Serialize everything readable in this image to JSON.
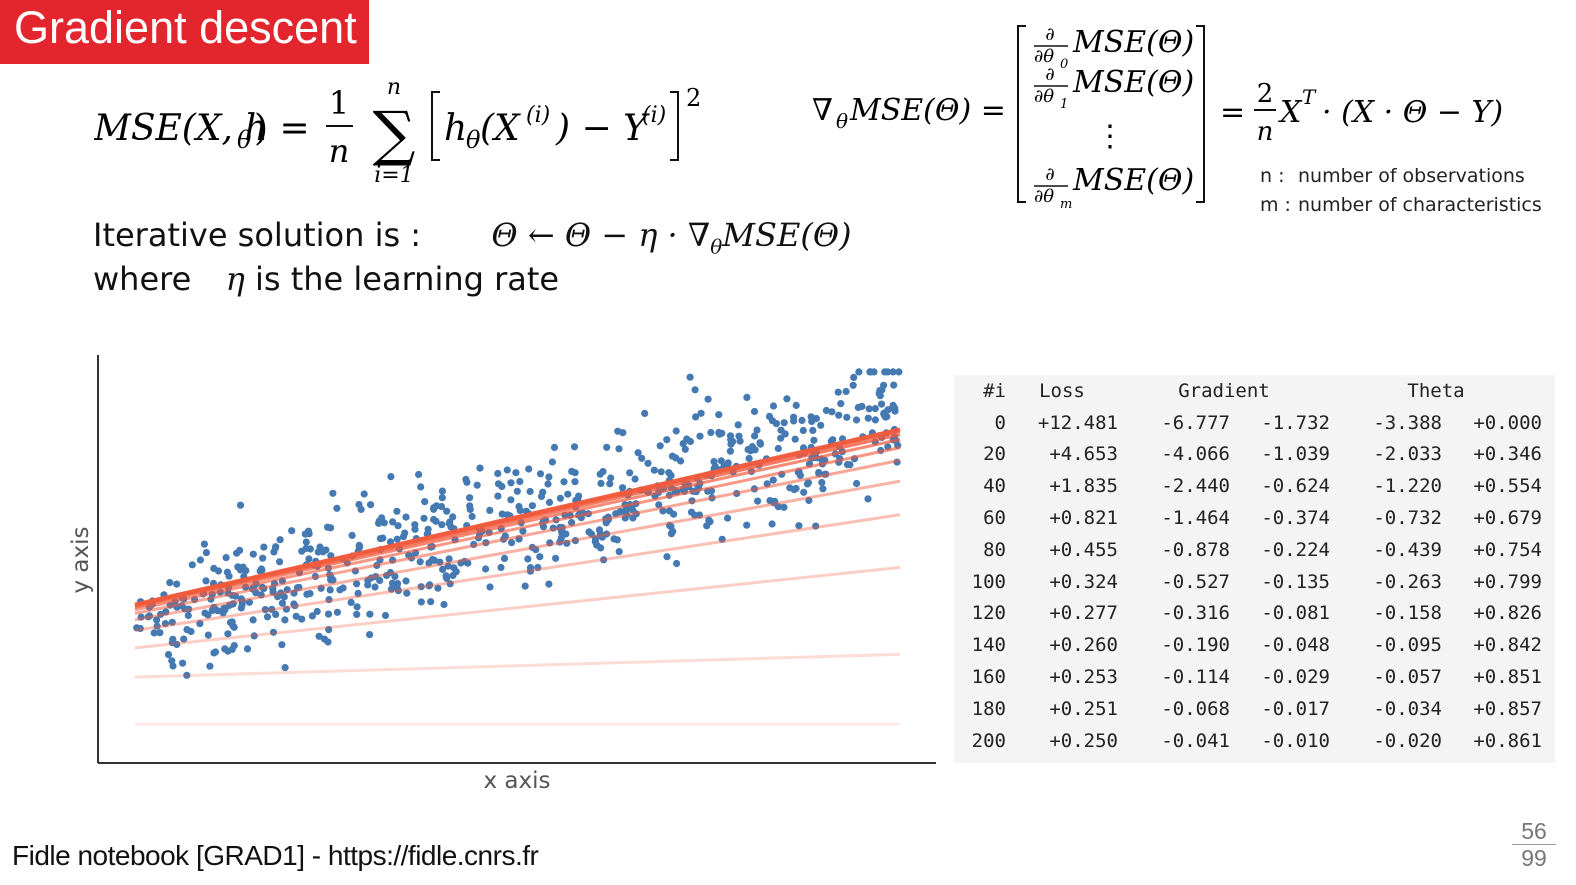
{
  "slide": {
    "title": "Gradient descent",
    "mse_formula": {
      "lhs": "MSE(X, h",
      "lhs_sub": "θ",
      "lhs_close": ") =",
      "frac_num": "1",
      "frac_den": "n",
      "sum_top": "n",
      "sum_bottom": "i=1",
      "sum_symbol": "∑",
      "body_h": "h",
      "body_h_sub": "θ",
      "body_x": "(X",
      "body_x_sup": "(i)",
      "body_minus": ") − Y",
      "body_y_sup": "(i)",
      "power": "2"
    },
    "gradient_formula": {
      "lhs": "∇",
      "lhs_sub": "θ",
      "lhs_rest": "MSE(Θ) =",
      "partial_sym": "∂",
      "entries": [
        {
          "den": "∂θ",
          "sub": "0",
          "term": "MSE(Θ)"
        },
        {
          "den": "∂θ",
          "sub": "1",
          "term": "MSE(Θ)"
        },
        {
          "den": "∂θ",
          "sub": "m",
          "term": "MSE(Θ)"
        }
      ],
      "vdots": "⋮",
      "rhs_eq": "=",
      "rhs_num": "2",
      "rhs_den": "n",
      "rhs_x": "X",
      "rhs_sup": "T",
      "rhs_rest": "· (X · Θ − Y)"
    },
    "notes": [
      {
        "key": "n :",
        "text": "number of observations"
      },
      {
        "key": "m :",
        "text": "number of characteristics"
      }
    ],
    "iterative": {
      "label": "Iterative solution is :",
      "formula": "Θ ← Θ − η · ∇",
      "formula_sub": "θ",
      "formula_rest": "MSE(Θ)"
    },
    "where": {
      "prefix": "where",
      "symbol": "η",
      "suffix": "is the learning rate"
    },
    "footer": "Fidle notebook [GRAD1] - https://fidle.cnrs.fr",
    "page_current": "56",
    "page_total": "99"
  },
  "chart_data": {
    "type": "scatter",
    "xlabel": "x axis",
    "ylabel": "y axis",
    "xlim": [
      0,
      2
    ],
    "ylim": [
      0,
      11
    ],
    "grid": false,
    "scatter_color": "#4479b2",
    "line_color": "#f25a3c",
    "points_trend": {
      "intercept": 3.4,
      "slope": 3.0,
      "noise": 1.6,
      "count": 700
    },
    "fitted_lines": [
      {
        "iteration": 0,
        "intercept": 0.0,
        "slope": 0.0
      },
      {
        "iteration": 20,
        "intercept": 1.365,
        "slope": 0.33
      },
      {
        "iteration": 40,
        "intercept": 2.21,
        "slope": 1.165
      },
      {
        "iteration": 60,
        "intercept": 2.718,
        "slope": 1.675
      },
      {
        "iteration": 80,
        "intercept": 3.025,
        "slope": 2.005
      },
      {
        "iteration": 100,
        "intercept": 3.21,
        "slope": 2.215
      },
      {
        "iteration": 120,
        "intercept": 3.32,
        "slope": 2.345
      },
      {
        "iteration": 140,
        "intercept": 3.385,
        "slope": 2.43
      },
      {
        "iteration": 160,
        "intercept": 3.425,
        "slope": 2.48
      },
      {
        "iteration": 180,
        "intercept": 3.45,
        "slope": 2.515
      },
      {
        "iteration": 200,
        "intercept": 3.465,
        "slope": 2.535
      }
    ]
  },
  "table": {
    "headers": [
      "#i",
      "Loss",
      "Gradient",
      "Theta"
    ],
    "rows": [
      [
        "0",
        "+12.481",
        "-6.777",
        "-1.732",
        "-3.388",
        "+0.000"
      ],
      [
        "20",
        "+4.653",
        "-4.066",
        "-1.039",
        "-2.033",
        "+0.346"
      ],
      [
        "40",
        "+1.835",
        "-2.440",
        "-0.624",
        "-1.220",
        "+0.554"
      ],
      [
        "60",
        "+0.821",
        "-1.464",
        "-0.374",
        "-0.732",
        "+0.679"
      ],
      [
        "80",
        "+0.455",
        "-0.878",
        "-0.224",
        "-0.439",
        "+0.754"
      ],
      [
        "100",
        "+0.324",
        "-0.527",
        "-0.135",
        "-0.263",
        "+0.799"
      ],
      [
        "120",
        "+0.277",
        "-0.316",
        "-0.081",
        "-0.158",
        "+0.826"
      ],
      [
        "140",
        "+0.260",
        "-0.190",
        "-0.048",
        "-0.095",
        "+0.842"
      ],
      [
        "160",
        "+0.253",
        "-0.114",
        "-0.029",
        "-0.057",
        "+0.851"
      ],
      [
        "180",
        "+0.251",
        "-0.068",
        "-0.017",
        "-0.034",
        "+0.857"
      ],
      [
        "200",
        "+0.250",
        "-0.041",
        "-0.010",
        "-0.020",
        "+0.861"
      ]
    ]
  }
}
